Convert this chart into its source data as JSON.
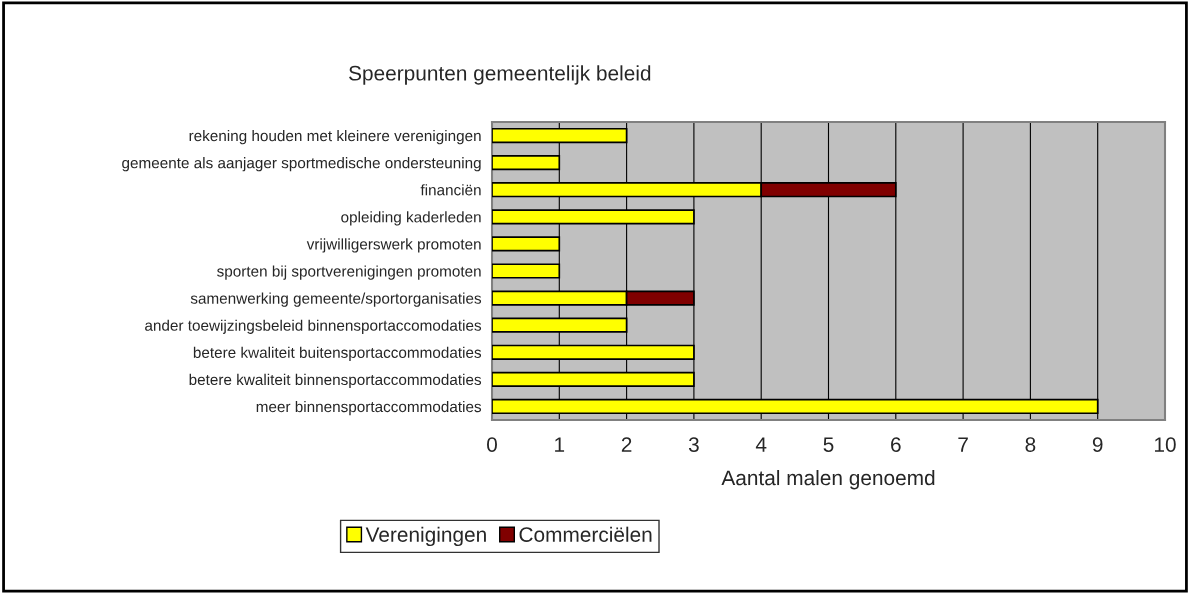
{
  "chart_data": {
    "type": "bar",
    "orientation": "horizontal",
    "stacked": true,
    "title": "Speerpunten gemeentelijk beleid",
    "xlabel": "Aantal malen genoemd",
    "categories": [
      "rekening houden met kleinere verenigingen",
      "gemeente als aanjager sportmedische ondersteuning",
      "financiën",
      "opleiding kaderleden",
      "vrijwilligerswerk promoten",
      "sporten bij sportverenigingen promoten",
      "samenwerking gemeente/sportorganisaties",
      "ander toewijzingsbeleid binnensportaccomodaties",
      "betere kwaliteit buitensportaccommodaties",
      "betere kwaliteit binnensportaccommodaties",
      "meer binnensportaccommodaties"
    ],
    "series": [
      {
        "name": "Verenigingen",
        "color": "#ffff00",
        "values": [
          2,
          1,
          4,
          3,
          1,
          1,
          2,
          2,
          3,
          3,
          9
        ]
      },
      {
        "name": "Commerciëlen",
        "color": "#800000",
        "values": [
          null,
          null,
          2,
          null,
          null,
          null,
          1,
          null,
          null,
          null,
          null
        ]
      }
    ],
    "xlim": [
      0,
      10
    ],
    "xticks": [
      0,
      1,
      2,
      3,
      4,
      5,
      6,
      7,
      8,
      9,
      10
    ],
    "grid": "x",
    "legend": "bottom"
  }
}
